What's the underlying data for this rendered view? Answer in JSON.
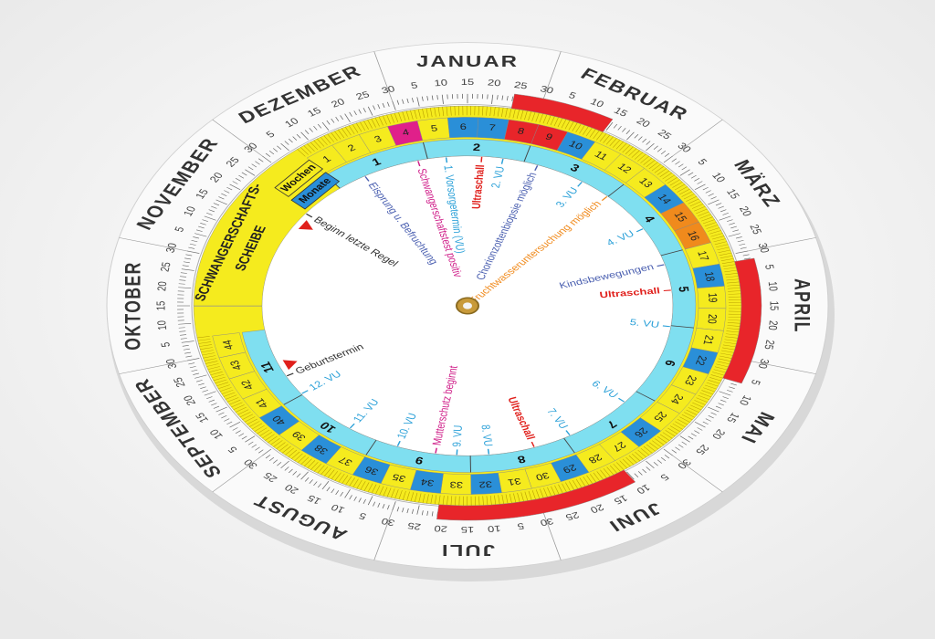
{
  "outer_ring": {
    "months": [
      "JANUAR",
      "FEBRUAR",
      "MÄRZ",
      "APRIL",
      "MAI",
      "JUNI",
      "JULI",
      "AUGUST",
      "SEPTEMBER",
      "OKTOBER",
      "NOVEMBER",
      "DEZEMBER"
    ],
    "day_labels": [
      "5",
      "10",
      "15",
      "20",
      "25",
      "30"
    ]
  },
  "disc": {
    "title_lines": [
      "SCHWANGERSCHAFTS-",
      "SCHEIBE"
    ],
    "row_labels": [
      "Wochen",
      "Monate"
    ],
    "weeks": [
      "1",
      "2",
      "3",
      "4",
      "5",
      "6",
      "7",
      "8",
      "9",
      "10",
      "11",
      "12",
      "13",
      "14",
      "15",
      "16",
      "17",
      "18",
      "19",
      "20",
      "21",
      "22",
      "23",
      "24",
      "25",
      "26",
      "27",
      "28",
      "29",
      "30",
      "31",
      "32",
      "33",
      "34",
      "35",
      "36",
      "37",
      "38",
      "39",
      "40",
      "41",
      "42",
      "43",
      "44"
    ],
    "months": [
      "1",
      "2",
      "3",
      "4",
      "5",
      "6",
      "7",
      "8",
      "9",
      "10",
      "11"
    ],
    "annotations": [
      {
        "text": "Beginn letzte Regel",
        "color": "#333333"
      },
      {
        "text": "Eisprung u. Befruchtung",
        "color": "#4a5fb0"
      },
      {
        "text": "Schwangerschaftstest positiv",
        "color": "#d0208a"
      },
      {
        "text": "1. Vorsorgetermin (VU)",
        "color": "#2aa0d8"
      },
      {
        "text": "Ultraschall",
        "color": "#e0201c"
      },
      {
        "text": "2. VU",
        "color": "#2aa0d8"
      },
      {
        "text": "Chorionzottenbiopsie möglich",
        "color": "#4a5fb0"
      },
      {
        "text": "3. VU",
        "color": "#2aa0d8"
      },
      {
        "text": "Fruchtwasseruntersuchung möglich",
        "color": "#f08a1c"
      },
      {
        "text": "4. VU",
        "color": "#2aa0d8"
      },
      {
        "text": "Kindsbewegungen",
        "color": "#4a5fb0"
      },
      {
        "text": "Ultraschall",
        "color": "#e0201c"
      },
      {
        "text": "5. VU",
        "color": "#2aa0d8"
      },
      {
        "text": "6. VU",
        "color": "#2aa0d8"
      },
      {
        "text": "7. VU",
        "color": "#2aa0d8"
      },
      {
        "text": "Ultraschall",
        "color": "#e0201c"
      },
      {
        "text": "8. VU",
        "color": "#2aa0d8"
      },
      {
        "text": "9. VU",
        "color": "#2aa0d8"
      },
      {
        "text": "Mutterschutz beginnt",
        "color": "#d0208a"
      },
      {
        "text": "10. VU",
        "color": "#2aa0d8"
      },
      {
        "text": "11. VU",
        "color": "#2aa0d8"
      },
      {
        "text": "12. VU",
        "color": "#2aa0d8"
      },
      {
        "text": "Geburtstermin",
        "color": "#333333"
      }
    ]
  }
}
